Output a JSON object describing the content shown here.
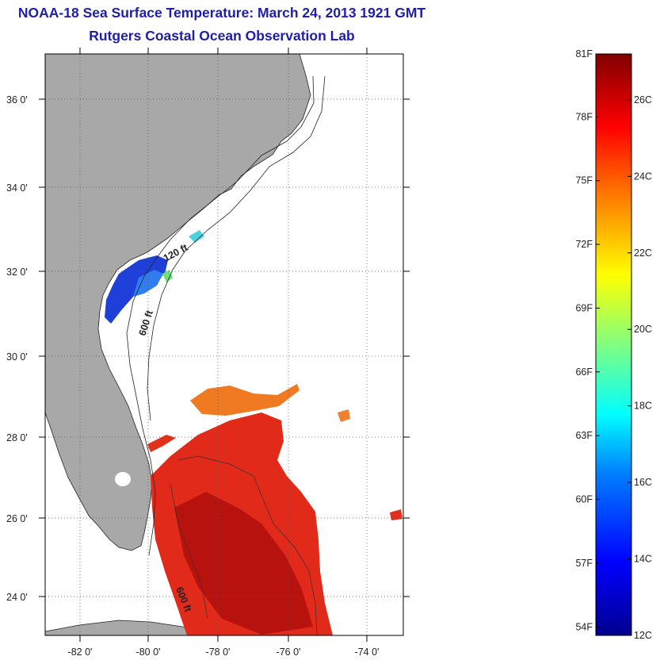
{
  "title": "NOAA-18 Sea Surface Temperature:  March 24, 2013 1921 GMT",
  "subtitle": "Rutgers Coastal Ocean Observation Lab",
  "lat_labels": [
    "36 0'",
    "34 0'",
    "32 0'",
    "30 0'",
    "28 0'",
    "26 0'",
    "24 0'"
  ],
  "lon_labels": [
    "-82 0'",
    "-80 0'",
    "-78 0'",
    "-76 0'",
    "-74 0'"
  ],
  "contour_labels": {
    "c120_north": "120 ft",
    "c600_north": "600 ft",
    "c600_south": "600 ft"
  },
  "colorbar": {
    "f_labels": [
      "81F",
      "78F",
      "75F",
      "72F",
      "69F",
      "66F",
      "63F",
      "60F",
      "57F",
      "54F"
    ],
    "c_labels": [
      "26C",
      "24C",
      "22C",
      "20C",
      "18C",
      "16C",
      "14C",
      "12C"
    ],
    "range_c": [
      12,
      27.2
    ],
    "range_f": [
      54,
      81
    ],
    "colors": [
      "#00008f",
      "#0000ff",
      "#0080ff",
      "#00ffff",
      "#80ff80",
      "#ffff00",
      "#ff8000",
      "#ff0000",
      "#800000"
    ]
  },
  "colors": {
    "title": "#1e1ea8",
    "land": "#a8a8a8",
    "ocean": "#ffffff"
  }
}
